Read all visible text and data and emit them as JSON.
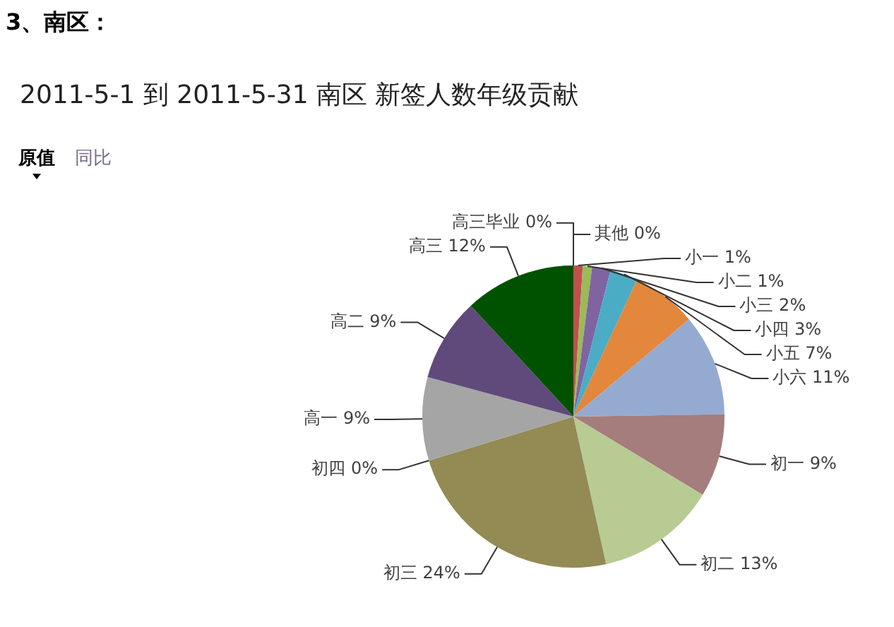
{
  "chart_data": {
    "type": "pie",
    "title": "3、南区：",
    "subtitle": "2011-5-1 到 2011-5-31 南区 新签人数年级贡献",
    "annotations": [
      "原值",
      "同比"
    ],
    "categories": [
      "其他",
      "小一",
      "小二",
      "小三",
      "小四",
      "小五",
      "小六",
      "初一",
      "初二",
      "初三",
      "初四",
      "高一",
      "高二",
      "高三",
      "高三毕业"
    ],
    "values": [
      0,
      1,
      1,
      2,
      3,
      7,
      11,
      9,
      13,
      24,
      0,
      9,
      9,
      12,
      0
    ],
    "value_labels": [
      "0%",
      "1%",
      "1%",
      "2%",
      "3%",
      "7%",
      "11%",
      "9%",
      "13%",
      "24%",
      "0%",
      "9%",
      "9%",
      "12%",
      "0%"
    ],
    "colors": [
      "#4f81bd",
      "#c0504d",
      "#9bbb59",
      "#8064a2",
      "#4bacc6",
      "#e2873c",
      "#95aad1",
      "#a57d7c",
      "#b7cb93",
      "#948a54",
      "#f9c08c",
      "#a5a5a5",
      "#604a7b",
      "#005200",
      "#2c4d75"
    ]
  }
}
